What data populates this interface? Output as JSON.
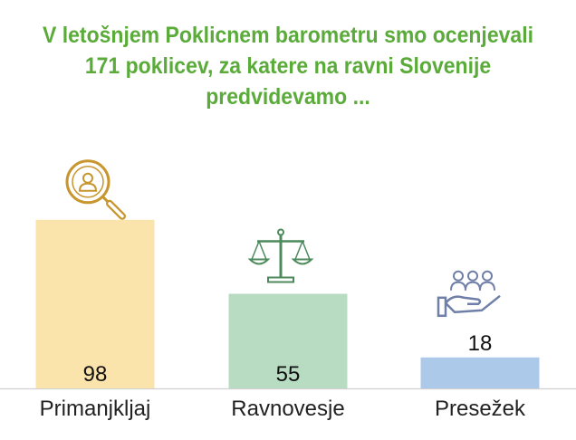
{
  "title_lines": [
    "V letošnjem Poklicnem barometru smo ocenjevali",
    "171 poklicev, za katere na ravni Slovenije",
    "predvidevamo ..."
  ],
  "colors": {
    "title": "#5aab3a",
    "axis": "#d0d0d0"
  },
  "chart_data": {
    "type": "bar",
    "title": "V letošnjem Poklicnem barometru smo ocenjevali 171 poklicev, za katere na ravni Slovenije predvidevamo ...",
    "categories": [
      "Primanjkljaj",
      "Ravnovesje",
      "Presežek"
    ],
    "values": [
      98,
      55,
      18
    ],
    "bar_colors": [
      "#fbe3ac",
      "#b7dcc1",
      "#adc9ea"
    ],
    "icons": [
      "magnifier-person-icon",
      "scales-icon",
      "hand-people-icon"
    ],
    "icon_colors": [
      "#c8962e",
      "#4c8a5c",
      "#6f7fa8"
    ],
    "ylim": [
      0,
      100
    ],
    "grid": false,
    "legend": "none"
  }
}
